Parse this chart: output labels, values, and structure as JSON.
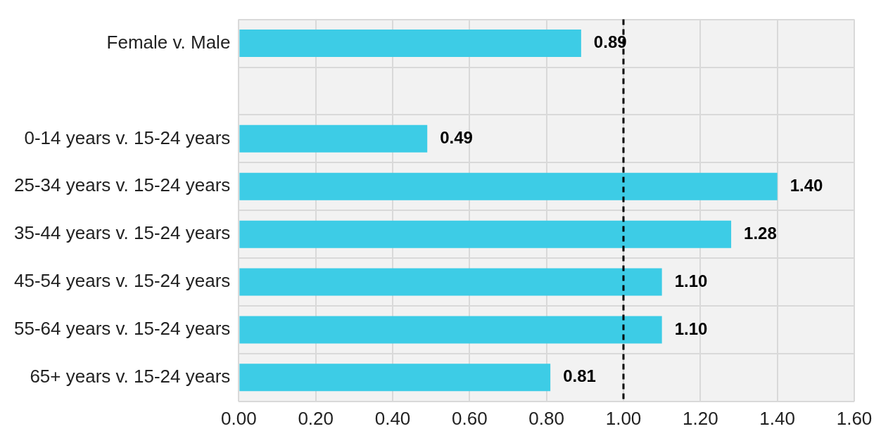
{
  "chart_data": {
    "type": "bar",
    "orientation": "horizontal",
    "categories": [
      "Female v. Male",
      null,
      "0-14 years v. 15-24 years",
      "25-34 years v. 15-24 years",
      "35-44 years v. 15-24 years",
      "45-54 years v. 15-24 years",
      "55-64 years v. 15-24 years",
      "65+ years v. 15-24 years"
    ],
    "values": [
      0.89,
      null,
      0.49,
      1.4,
      1.28,
      1.1,
      1.1,
      0.81
    ],
    "value_labels": [
      "0.89",
      null,
      "0.49",
      "1.40",
      "1.28",
      "1.10",
      "1.10",
      "0.81"
    ],
    "color": "#3dcce6",
    "xlim": [
      0,
      1.6
    ],
    "xticks": [
      {
        "value": 0,
        "label": "0.00"
      },
      {
        "value": 0.2,
        "label": "0.20"
      },
      {
        "value": 0.4,
        "label": "0.40"
      },
      {
        "value": 0.6,
        "label": "0.60"
      },
      {
        "value": 0.8,
        "label": "0.80"
      },
      {
        "value": 1,
        "label": "1.00"
      },
      {
        "value": 1.2,
        "label": "1.20"
      },
      {
        "value": 1.4,
        "label": "1.40"
      },
      {
        "value": 1.6,
        "label": "1.60"
      }
    ],
    "ref_lines": [
      {
        "axis": "x",
        "value": 1,
        "color": "#000000",
        "line_style": "dashed"
      }
    ],
    "grid": true,
    "legend": false
  }
}
